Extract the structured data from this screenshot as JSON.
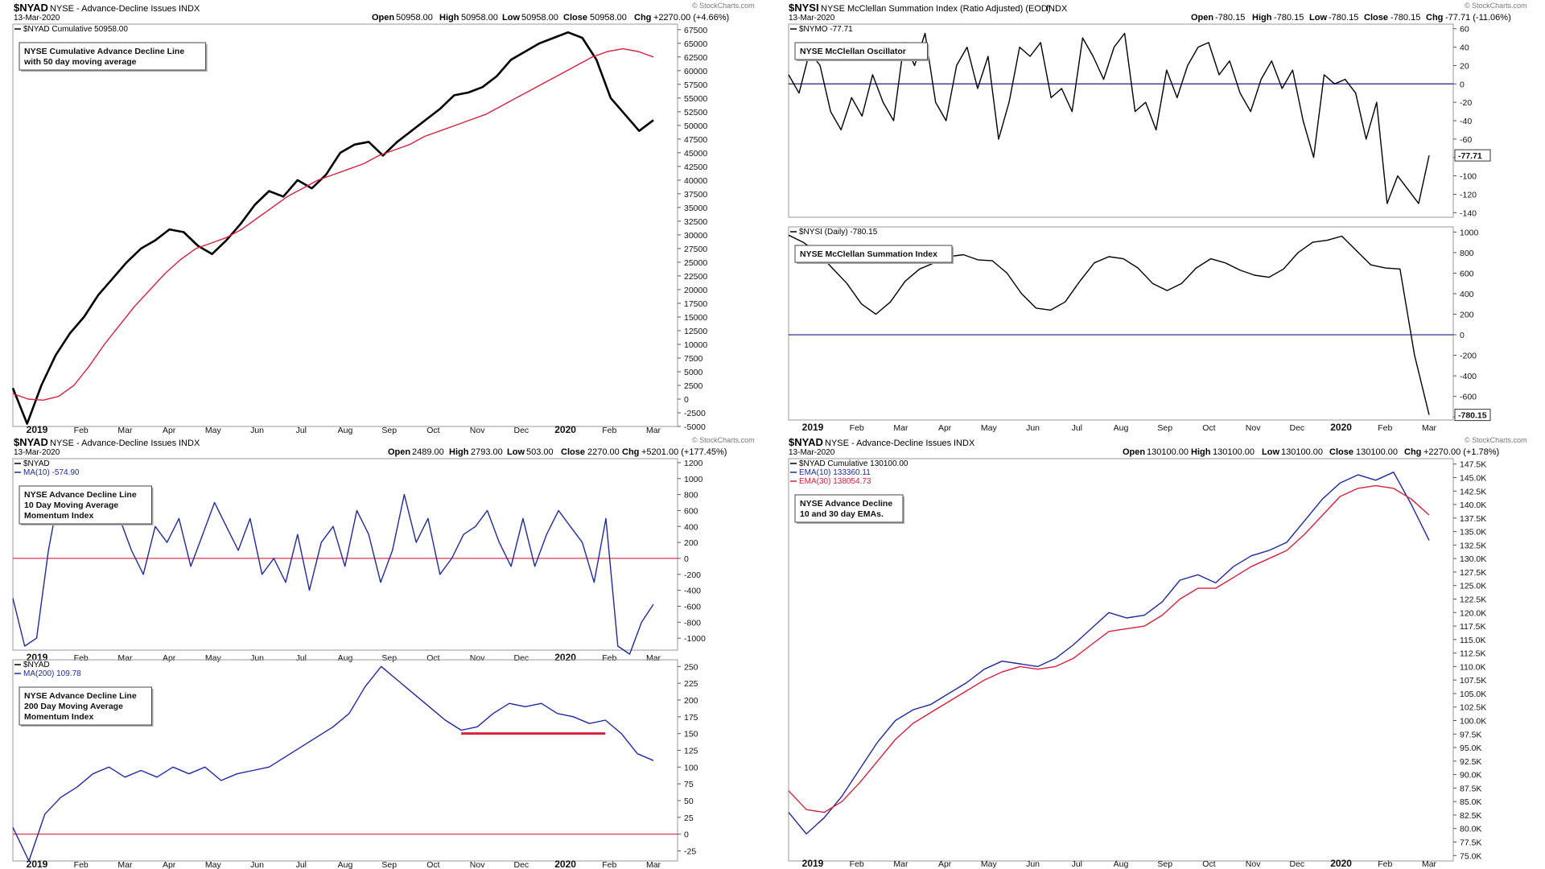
{
  "colors": {
    "black": "#000000",
    "red": "#d6203c",
    "blue": "#1f2a9e",
    "navy": "#1c1c8c",
    "grid": "#cccccc"
  },
  "month_labels": [
    "2019",
    "Feb",
    "Mar",
    "Apr",
    "May",
    "Jun",
    "Jul",
    "Aug",
    "Sep",
    "Oct",
    "Nov",
    "Dec",
    "2020",
    "Feb",
    "Mar"
  ],
  "panels": [
    {
      "symbol": "$NYAD",
      "title": "NYSE - Advance-Decline Issues",
      "exchange": "INDX",
      "date": "13-Mar-2020",
      "watermark": "© StockCharts.com",
      "ohlc": {
        "open": "50958.00",
        "high": "50958.00",
        "low": "50958.00",
        "close": "50958.00",
        "chg": "+2270.00 (+4.66%)"
      }
    },
    {
      "symbol": "$NYSI",
      "title": "NYSE McClellan Summation Index (Ratio Adjusted) (EOD)",
      "exchange": "INDX",
      "date": "13-Mar-2020",
      "watermark": "© StockCharts.com",
      "ohlc": {
        "open": "-780.15",
        "high": "-780.15",
        "low": "-780.15",
        "close": "-780.15",
        "chg": "-77.71 (-11.06%)"
      }
    },
    {
      "symbol": "$NYAD",
      "title": "NYSE - Advance-Decline Issues",
      "exchange": "INDX",
      "date": "13-Mar-2020",
      "watermark": "© StockCharts.com",
      "ohlc": {
        "open": "2489.00",
        "high": "2793.00",
        "low": "503.00",
        "close": "2270.00",
        "chg": "+5201.00 (+177.45%)"
      }
    },
    {
      "symbol": "$NYAD",
      "title": "NYSE - Advance-Decline Issues",
      "exchange": "INDX",
      "date": "13-Mar-2020",
      "watermark": "© StockCharts.com",
      "ohlc": {
        "open": "130100.00",
        "high": "130100.00",
        "low": "130100.00",
        "close": "130100.00",
        "chg": "+2270.00 (+1.78%)"
      }
    }
  ],
  "chart_data": [
    {
      "type": "line",
      "legend": [
        "$NYAD Cumulative 50958.00"
      ],
      "annotation": [
        "NYSE Cumulative Advance Decline Line",
        "with 50 day moving average"
      ],
      "y_ticks": [
        67500,
        65000,
        62500,
        60000,
        57500,
        55000,
        52500,
        50000,
        47500,
        45000,
        42500,
        40000,
        37500,
        35000,
        32500,
        30000,
        27500,
        25000,
        22500,
        20000,
        17500,
        15000,
        12500,
        10000,
        7500,
        5000,
        2500,
        0,
        -2500,
        -5000
      ],
      "ylim": [
        -5000,
        68500
      ],
      "x_labels": [
        "2019",
        "Feb",
        "Mar",
        "Apr",
        "May",
        "Jun",
        "Jul",
        "Aug",
        "Sep",
        "Oct",
        "Nov",
        "Dec",
        "2020",
        "Feb",
        "Mar"
      ],
      "series": [
        {
          "name": "$NYAD Cumulative",
          "color": "#000000",
          "values": [
            2000,
            -4500,
            2500,
            8000,
            12000,
            15000,
            19000,
            22000,
            25000,
            27500,
            29000,
            31000,
            30500,
            28000,
            26500,
            29000,
            32000,
            35500,
            38000,
            37000,
            40000,
            38500,
            41000,
            45000,
            46500,
            47000,
            44500,
            47000,
            49000,
            51000,
            53000,
            55500,
            56000,
            57000,
            59000,
            62000,
            63500,
            65000,
            66000,
            67000,
            66000,
            62000,
            55000,
            52000,
            49000,
            50958
          ]
        },
        {
          "name": "50 day MA",
          "color": "#d6203c",
          "values": [
            1000,
            0,
            -200,
            500,
            2500,
            6000,
            10000,
            13500,
            17000,
            20000,
            23000,
            25500,
            27500,
            28500,
            29500,
            31000,
            33000,
            35000,
            37000,
            38500,
            40000,
            41000,
            42000,
            43000,
            44500,
            45500,
            46500,
            48000,
            49000,
            50000,
            51000,
            52000,
            53500,
            55000,
            56500,
            58000,
            59500,
            61000,
            62500,
            63500,
            64000,
            63500,
            62500
          ]
        }
      ]
    },
    {
      "type": "line",
      "legend": [
        "$NYMO -77.71"
      ],
      "annotation": [
        "NYSE McClellan Oscillator"
      ],
      "y_ticks": [
        60,
        40,
        20,
        0,
        -20,
        -40,
        -60,
        -80,
        -100,
        -120,
        -140
      ],
      "ylim": [
        -145,
        65
      ],
      "last_value_label": "-77.71",
      "reference_line": 0,
      "series": [
        {
          "name": "$NYMO",
          "color": "#000000",
          "values": [
            10,
            -10,
            35,
            20,
            -30,
            -50,
            -15,
            -35,
            10,
            -20,
            -40,
            45,
            20,
            55,
            -20,
            -40,
            20,
            40,
            -5,
            30,
            -60,
            -20,
            40,
            30,
            45,
            -15,
            -5,
            -30,
            50,
            30,
            5,
            40,
            55,
            -30,
            -20,
            -50,
            15,
            -15,
            20,
            40,
            45,
            10,
            25,
            -10,
            -30,
            5,
            25,
            -5,
            15,
            -40,
            -80,
            10,
            0,
            5,
            -10,
            -60,
            -20,
            -130,
            -100,
            -115,
            -130,
            -77.71
          ]
        }
      ]
    },
    {
      "type": "line",
      "legend": [
        "$NYSI (Daily) -780.15"
      ],
      "annotation": [
        "NYSE McClellan Summation Index"
      ],
      "y_ticks": [
        1000,
        800,
        600,
        400,
        200,
        0,
        -200,
        -400,
        -600,
        -800
      ],
      "ylim": [
        -830,
        1050
      ],
      "last_value_label": "-780.15",
      "reference_line": 0,
      "series": [
        {
          "name": "$NYSI (Daily)",
          "color": "#000000",
          "values": [
            970,
            900,
            800,
            650,
            500,
            300,
            200,
            320,
            520,
            640,
            700,
            760,
            780,
            730,
            720,
            600,
            400,
            260,
            240,
            320,
            520,
            700,
            760,
            740,
            650,
            500,
            430,
            500,
            650,
            740,
            700,
            630,
            580,
            560,
            640,
            800,
            900,
            920,
            960,
            820,
            680,
            650,
            640,
            -200,
            -780.15
          ]
        }
      ]
    },
    {
      "type": "line",
      "legend": [
        "$NYAD",
        "MA(10) -574.90"
      ],
      "annotation": [
        "NYSE Advance Decline Line",
        "10 Day Moving Average",
        "Momentum Index"
      ],
      "y_ticks": [
        1200,
        1000,
        800,
        600,
        400,
        200,
        0,
        -200,
        -400,
        -600,
        -800,
        -1000
      ],
      "ylim": [
        -1150,
        1250
      ],
      "x_labels": [
        "2019",
        "Feb",
        "Mar",
        "Apr",
        "May",
        "Jun",
        "Jul",
        "Aug",
        "Sep",
        "Oct",
        "Nov",
        "Dec",
        "2020",
        "Feb",
        "Mar"
      ],
      "reference_line": 0,
      "series": [
        {
          "name": "MA(10)",
          "color": "#1f2a9e",
          "values": [
            -500,
            -1100,
            -1000,
            100,
            900,
            700,
            800,
            700,
            600,
            500,
            100,
            -200,
            400,
            200,
            500,
            -100,
            300,
            700,
            400,
            100,
            500,
            -200,
            0,
            -300,
            300,
            -400,
            200,
            400,
            -100,
            600,
            300,
            -300,
            100,
            800,
            200,
            500,
            -200,
            0,
            300,
            400,
            600,
            200,
            -100,
            500,
            -100,
            300,
            600,
            400,
            200,
            -300,
            500,
            -1100,
            -1200,
            -800,
            -574.9
          ]
        }
      ]
    },
    {
      "type": "line",
      "legend": [
        "$NYAD",
        "MA(200) 109.78"
      ],
      "annotation": [
        "NYSE Advance Decline Line",
        "200 Day Moving Average",
        "Momentum Index"
      ],
      "y_ticks": [
        250,
        225,
        200,
        175,
        150,
        125,
        100,
        75,
        50,
        25,
        0,
        -25
      ],
      "ylim": [
        -40,
        260
      ],
      "x_labels": [
        "2019",
        "Feb",
        "Mar",
        "Apr",
        "May",
        "Jun",
        "Jul",
        "Aug",
        "Sep",
        "Oct",
        "Nov",
        "Dec",
        "2020",
        "Feb",
        "Mar"
      ],
      "reference_line": 0,
      "horizontal_marker": {
        "value": 150,
        "from_index": 28,
        "to_index": 37,
        "color": "#d6203c"
      },
      "series": [
        {
          "name": "MA(200)",
          "color": "#1f2a9e",
          "values": [
            10,
            -40,
            30,
            55,
            70,
            90,
            100,
            85,
            95,
            85,
            100,
            90,
            100,
            80,
            90,
            95,
            100,
            115,
            130,
            145,
            160,
            180,
            220,
            250,
            230,
            210,
            190,
            170,
            155,
            160,
            180,
            195,
            190,
            195,
            180,
            175,
            165,
            170,
            150,
            120,
            109.78
          ]
        }
      ]
    },
    {
      "type": "line",
      "legend": [
        "$NYAD Cumulative 130100.00",
        "EMA(10) 133360.11",
        "EMA(30) 138054.73"
      ],
      "annotation": [
        "NYSE Advance Decline",
        "10 and 30 day EMAs."
      ],
      "y_ticks": [
        "147.5K",
        "145.0K",
        "142.5K",
        "140.0K",
        "137.5K",
        "135.0K",
        "132.5K",
        "130.0K",
        "127.5K",
        "125.0K",
        "122.5K",
        "120.0K",
        "117.5K",
        "115.0K",
        "112.5K",
        "110.0K",
        "107.5K",
        "105.0K",
        "102.5K",
        "100.0K",
        "97.5K",
        "95.0K",
        "92.5K",
        "90.0K",
        "87.5K",
        "85.0K",
        "82.5K",
        "80.0K",
        "77.5K",
        "75.0K"
      ],
      "ylim": [
        74000,
        148500
      ],
      "x_labels": [
        "2019",
        "Feb",
        "Mar",
        "Apr",
        "May",
        "Jun",
        "Jul",
        "Aug",
        "Sep",
        "Oct",
        "Nov",
        "Dec",
        "2020",
        "Feb",
        "Mar"
      ],
      "series": [
        {
          "name": "EMA(10)",
          "color": "#1f2a9e",
          "values": [
            83000,
            79000,
            82000,
            86000,
            91000,
            96000,
            100000,
            102000,
            103000,
            105000,
            107000,
            109500,
            111000,
            110500,
            110000,
            111500,
            114000,
            117000,
            120000,
            119000,
            119500,
            122000,
            126000,
            127000,
            125500,
            128500,
            130500,
            131500,
            133000,
            137000,
            141000,
            144000,
            145500,
            144500,
            146000,
            140000,
            133360
          ]
        },
        {
          "name": "EMA(30)",
          "color": "#d6203c",
          "values": [
            87000,
            83500,
            83000,
            85000,
            88500,
            92500,
            96500,
            99500,
            101500,
            103500,
            105500,
            107500,
            109000,
            110000,
            109500,
            110000,
            111500,
            114000,
            116500,
            117000,
            117500,
            119500,
            122500,
            124500,
            124500,
            126500,
            128500,
            130000,
            131500,
            134500,
            138000,
            141500,
            143000,
            143500,
            143000,
            141000,
            138054
          ]
        }
      ]
    }
  ]
}
